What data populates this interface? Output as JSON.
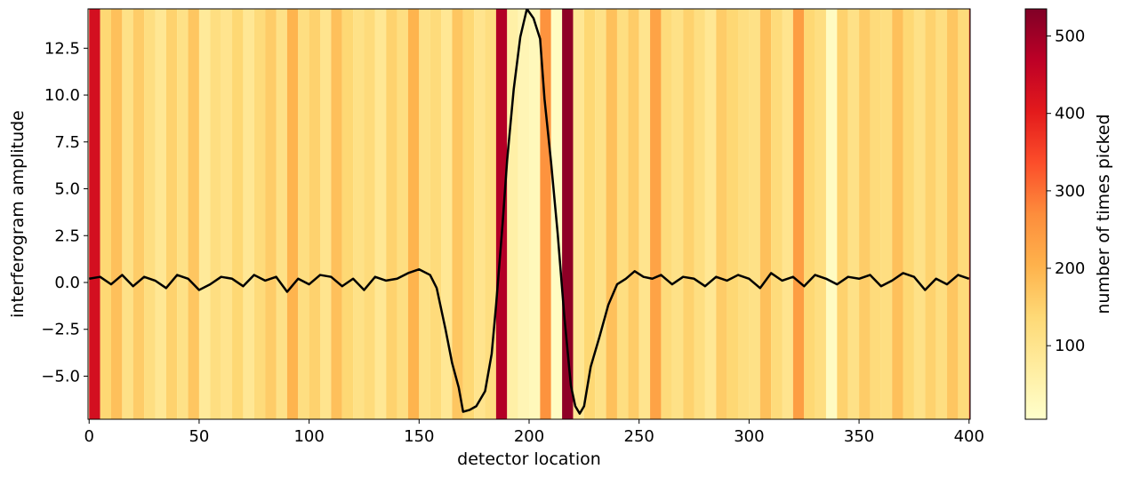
{
  "chart_data": {
    "type": "line",
    "xlabel": "detector location",
    "ylabel": "interferogram amplitude",
    "xlim": [
      -0.5,
      400.5
    ],
    "ylim": [
      -7.3,
      14.6
    ],
    "xticks": [
      0,
      50,
      100,
      150,
      200,
      250,
      300,
      350,
      400
    ],
    "xtick_labels": [
      "0",
      "50",
      "100",
      "150",
      "200",
      "250",
      "300",
      "350",
      "400"
    ],
    "yticks": [
      -5.0,
      -2.5,
      0.0,
      2.5,
      5.0,
      7.5,
      10.0,
      12.5
    ],
    "ytick_labels": [
      "−5.0",
      "−2.5",
      "0.0",
      "2.5",
      "5.0",
      "7.5",
      "10.0",
      "12.5"
    ],
    "line_color": "#000000",
    "colormap": "YlOrRd",
    "colorbar": {
      "label": "number of times picked",
      "range": [
        5,
        535
      ],
      "ticks": [
        100,
        200,
        300,
        400,
        500
      ],
      "tick_labels": [
        "100",
        "200",
        "300",
        "400",
        "500"
      ]
    },
    "heat_stripes": {
      "locations": [
        0,
        5,
        10,
        15,
        20,
        25,
        30,
        35,
        40,
        45,
        50,
        55,
        60,
        65,
        70,
        75,
        80,
        85,
        90,
        95,
        100,
        105,
        110,
        115,
        120,
        125,
        130,
        135,
        140,
        145,
        150,
        155,
        160,
        165,
        170,
        175,
        180,
        185,
        190,
        195,
        200,
        205,
        210,
        215,
        220,
        225,
        230,
        235,
        240,
        245,
        250,
        255,
        260,
        265,
        270,
        275,
        280,
        285,
        290,
        295,
        300,
        305,
        310,
        315,
        320,
        325,
        330,
        335,
        340,
        345,
        350,
        355,
        360,
        365,
        370,
        375,
        380,
        385,
        390,
        395,
        400
      ],
      "counts": [
        430,
        140,
        180,
        110,
        160,
        120,
        90,
        150,
        110,
        170,
        80,
        120,
        100,
        140,
        90,
        130,
        160,
        110,
        200,
        120,
        150,
        100,
        180,
        140,
        110,
        130,
        90,
        150,
        120,
        200,
        110,
        130,
        90,
        170,
        140,
        100,
        120,
        480,
        60,
        40,
        30,
        260,
        20,
        520,
        90,
        140,
        110,
        180,
        120,
        160,
        100,
        230,
        130,
        110,
        150,
        120,
        90,
        160,
        140,
        120,
        110,
        180,
        130,
        100,
        240,
        140,
        120,
        20,
        150,
        110,
        160,
        130,
        120,
        180,
        140,
        110,
        150,
        120,
        170,
        130,
        380
      ]
    },
    "series": [
      {
        "x": [
          0,
          5,
          10,
          15,
          20,
          25,
          30,
          35,
          40,
          45,
          50,
          55,
          60,
          65,
          70,
          75,
          80,
          85,
          90,
          95,
          100,
          105,
          110,
          115,
          120,
          125,
          130,
          135,
          140,
          145,
          150,
          155,
          158,
          162,
          165,
          168,
          170,
          173,
          176,
          180,
          183,
          185,
          188,
          190,
          193,
          196,
          199,
          202,
          205,
          207,
          210,
          213,
          216,
          219,
          221,
          223,
          225,
          228,
          232,
          236,
          240,
          244,
          248,
          252,
          256,
          260,
          265,
          270,
          275,
          280,
          285,
          290,
          295,
          300,
          305,
          310,
          315,
          320,
          325,
          330,
          335,
          340,
          345,
          350,
          355,
          360,
          365,
          370,
          375,
          380,
          385,
          390,
          395,
          400
        ],
        "y": [
          0.2,
          0.3,
          -0.1,
          0.4,
          -0.2,
          0.3,
          0.1,
          -0.3,
          0.4,
          0.2,
          -0.4,
          -0.1,
          0.3,
          0.2,
          -0.2,
          0.4,
          0.1,
          0.3,
          -0.5,
          0.2,
          -0.1,
          0.4,
          0.3,
          -0.2,
          0.2,
          -0.4,
          0.3,
          0.1,
          0.2,
          0.5,
          0.7,
          0.4,
          -0.3,
          -2.5,
          -4.3,
          -5.6,
          -6.9,
          -6.8,
          -6.6,
          -5.8,
          -3.8,
          -1.2,
          3.2,
          6.5,
          10.3,
          13.1,
          14.6,
          14.1,
          13.0,
          9.8,
          6.4,
          2.6,
          -1.8,
          -5.5,
          -6.6,
          -7.0,
          -6.6,
          -4.5,
          -2.9,
          -1.2,
          -0.1,
          0.2,
          0.6,
          0.3,
          0.2,
          0.4,
          -0.1,
          0.3,
          0.2,
          -0.2,
          0.3,
          0.1,
          0.4,
          0.2,
          -0.3,
          0.5,
          0.1,
          0.3,
          -0.2,
          0.4,
          0.2,
          -0.1,
          0.3,
          0.2,
          0.4,
          -0.2,
          0.1,
          0.5,
          0.3,
          -0.4,
          0.2,
          -0.1,
          0.4,
          0.2
        ]
      }
    ]
  }
}
